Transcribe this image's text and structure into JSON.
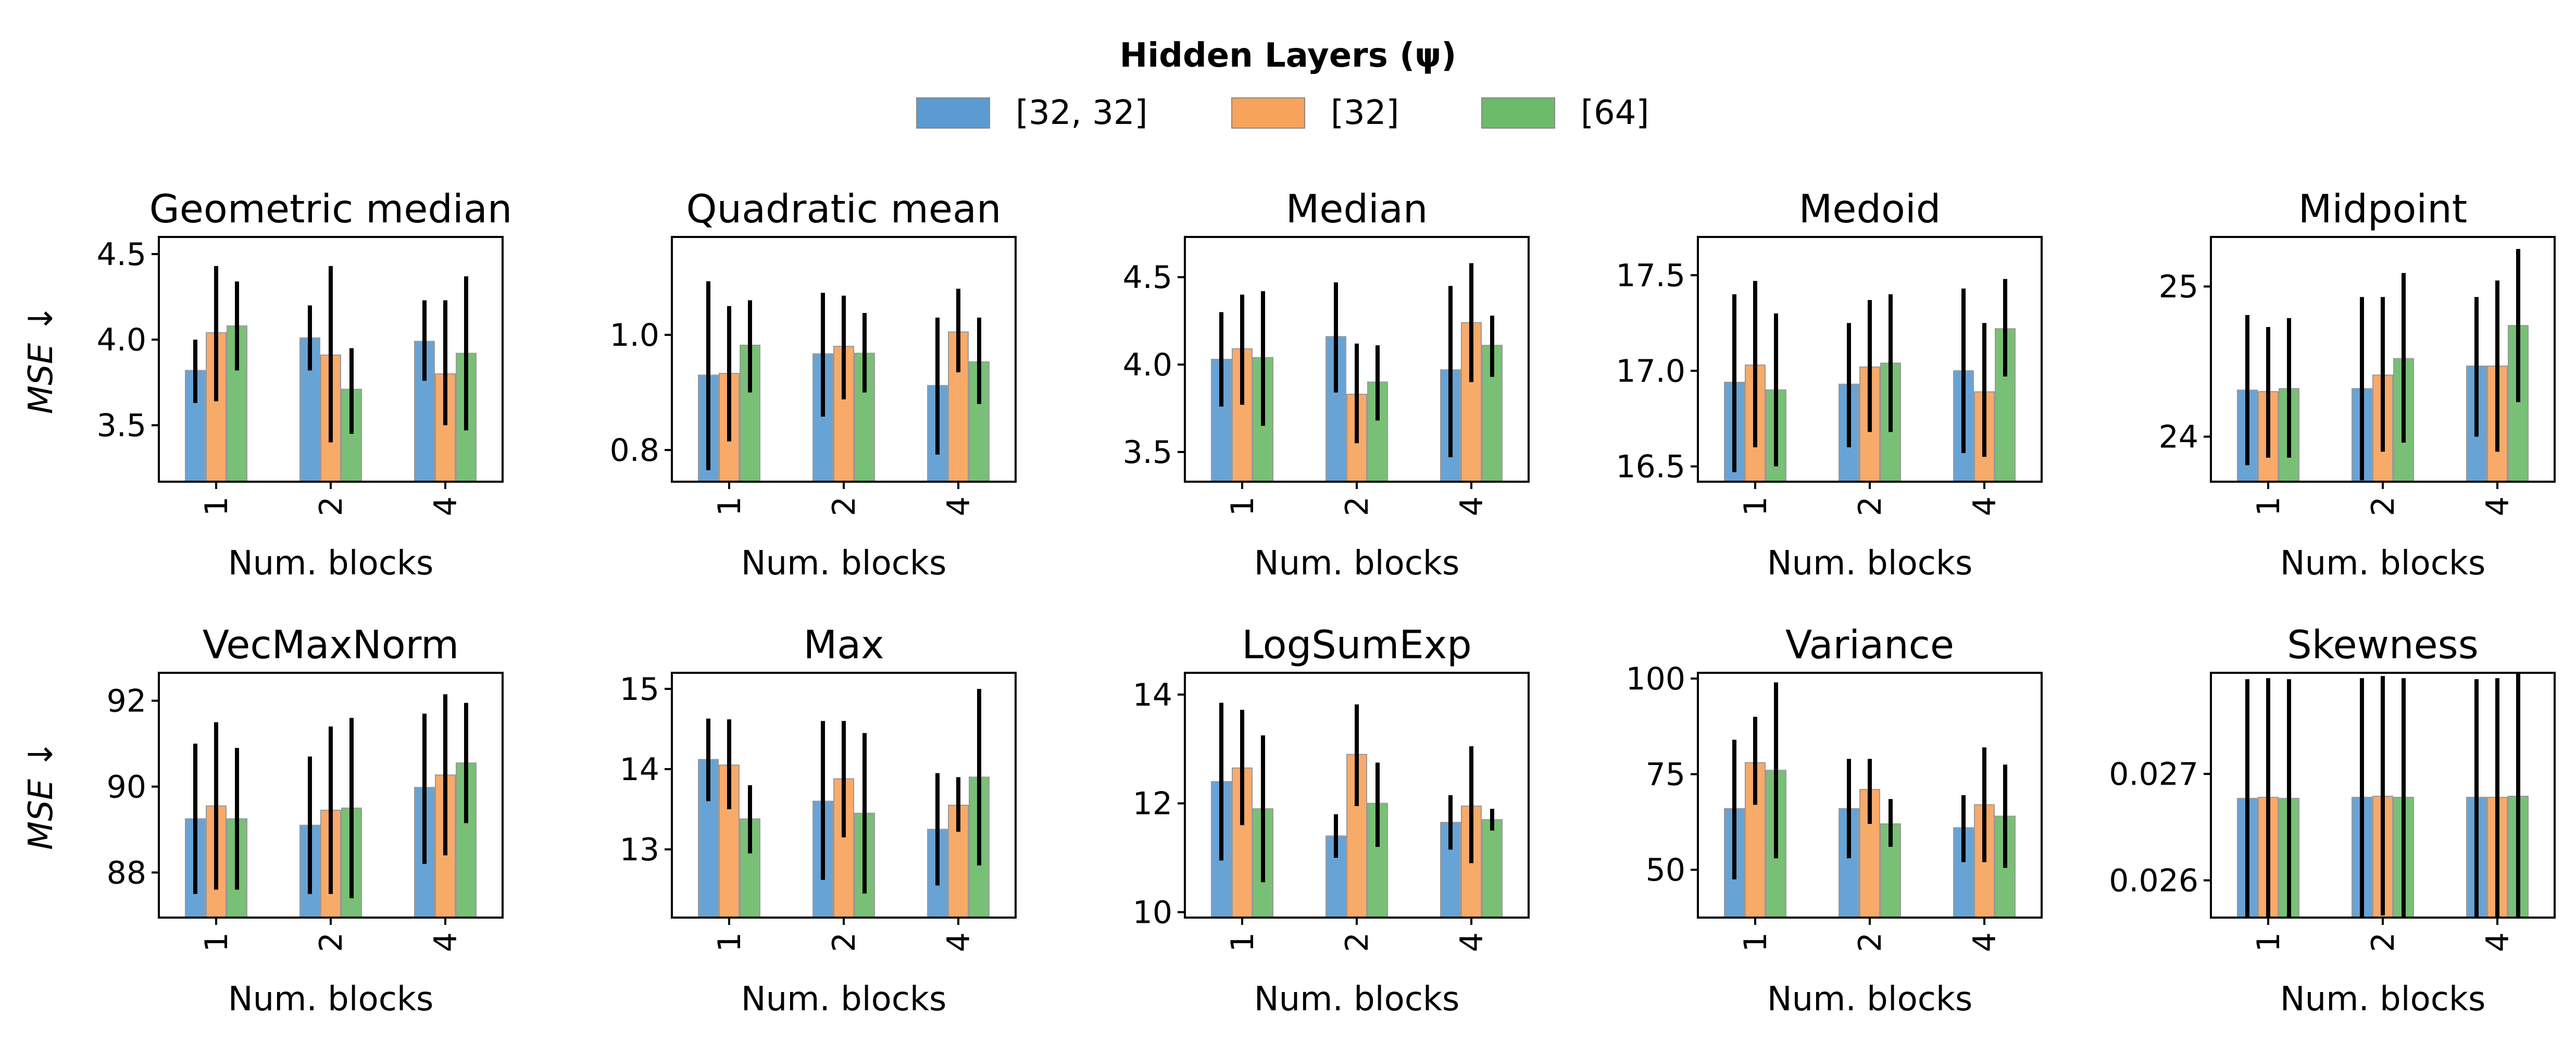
{
  "legend": {
    "title": "Hidden Layers (ψ)",
    "entries": [
      {
        "label": "[32, 32]",
        "color": "#5b9bd1"
      },
      {
        "label": "[32]",
        "color": "#f7a35c"
      },
      {
        "label": "[64]",
        "color": "#6cbb6a"
      }
    ]
  },
  "chart_data": [
    {
      "type": "bar",
      "title": "Geometric median",
      "xlabel": "Num. blocks",
      "ylabel": "MSE ↓",
      "categories": [
        "1",
        "2",
        "4"
      ],
      "ylim": [
        3.17,
        4.6
      ],
      "yticks": [
        3.5,
        4.0,
        4.5
      ],
      "ytick_labels": [
        "3.5",
        "4.0",
        "4.5"
      ],
      "series": [
        {
          "name": "[32, 32]",
          "values": [
            3.82,
            4.01,
            3.99
          ],
          "err": [
            [
              3.63,
              4.0
            ],
            [
              3.82,
              4.2
            ],
            [
              3.76,
              4.23
            ]
          ]
        },
        {
          "name": "[32]",
          "values": [
            4.04,
            3.91,
            3.8
          ],
          "err": [
            [
              3.64,
              4.43
            ],
            [
              3.4,
              4.43
            ],
            [
              3.5,
              4.23
            ]
          ]
        },
        {
          "name": "[64]",
          "values": [
            4.08,
            3.71,
            3.92
          ],
          "err": [
            [
              3.82,
              4.34
            ],
            [
              3.45,
              3.95
            ],
            [
              3.47,
              4.37
            ]
          ]
        }
      ]
    },
    {
      "type": "bar",
      "title": "Quadratic mean",
      "xlabel": "Num. blocks",
      "ylabel": "",
      "categories": [
        "1",
        "2",
        "4"
      ],
      "ylim": [
        0.745,
        1.17
      ],
      "yticks": [
        0.8,
        1.0
      ],
      "ytick_labels": [
        "0.8",
        "1.0"
      ],
      "series": [
        {
          "name": "[32, 32]",
          "values": [
            0.93,
            0.967,
            0.912
          ],
          "err": [
            [
              0.765,
              1.093
            ],
            [
              0.858,
              1.073
            ],
            [
              0.792,
              1.03
            ]
          ]
        },
        {
          "name": "[32]",
          "values": [
            0.933,
            0.98,
            1.005
          ],
          "err": [
            [
              0.815,
              1.05
            ],
            [
              0.888,
              1.068
            ],
            [
              0.935,
              1.08
            ]
          ]
        },
        {
          "name": "[64]",
          "values": [
            0.982,
            0.968,
            0.953
          ],
          "err": [
            [
              0.9,
              1.06
            ],
            [
              0.9,
              1.038
            ],
            [
              0.88,
              1.03
            ]
          ]
        }
      ]
    },
    {
      "type": "bar",
      "title": "Median",
      "xlabel": "Num. blocks",
      "ylabel": "",
      "categories": [
        "1",
        "2",
        "4"
      ],
      "ylim": [
        3.33,
        4.73
      ],
      "yticks": [
        3.5,
        4.0,
        4.5
      ],
      "ytick_labels": [
        "3.5",
        "4.0",
        "4.5"
      ],
      "series": [
        {
          "name": "[32, 32]",
          "values": [
            4.03,
            4.16,
            3.97
          ],
          "err": [
            [
              3.76,
              4.3
            ],
            [
              3.84,
              4.47
            ],
            [
              3.47,
              4.45
            ]
          ]
        },
        {
          "name": "[32]",
          "values": [
            4.09,
            3.83,
            4.24
          ],
          "err": [
            [
              3.77,
              4.4
            ],
            [
              3.55,
              4.12
            ],
            [
              3.9,
              4.58
            ]
          ]
        },
        {
          "name": "[64]",
          "values": [
            4.04,
            3.9,
            4.11
          ],
          "err": [
            [
              3.65,
              4.42
            ],
            [
              3.68,
              4.11
            ],
            [
              3.93,
              4.28
            ]
          ]
        }
      ]
    },
    {
      "type": "bar",
      "title": "Medoid",
      "xlabel": "Num. blocks",
      "ylabel": "",
      "categories": [
        "1",
        "2",
        "4"
      ],
      "ylim": [
        16.42,
        17.7
      ],
      "yticks": [
        16.5,
        17.0,
        17.5
      ],
      "ytick_labels": [
        "16.5",
        "17.0",
        "17.5"
      ],
      "series": [
        {
          "name": "[32, 32]",
          "values": [
            16.94,
            16.93,
            17.0
          ],
          "err": [
            [
              16.47,
              17.4
            ],
            [
              16.6,
              17.25
            ],
            [
              16.57,
              17.43
            ]
          ]
        },
        {
          "name": "[32]",
          "values": [
            17.03,
            17.02,
            16.89
          ],
          "err": [
            [
              16.6,
              17.47
            ],
            [
              16.68,
              17.37
            ],
            [
              16.55,
              17.25
            ]
          ]
        },
        {
          "name": "[64]",
          "values": [
            16.9,
            17.04,
            17.22
          ],
          "err": [
            [
              16.5,
              17.3
            ],
            [
              16.68,
              17.4
            ],
            [
              16.97,
              17.48
            ]
          ]
        }
      ]
    },
    {
      "type": "bar",
      "title": "Midpoint",
      "xlabel": "Num. blocks",
      "ylabel": "",
      "categories": [
        "1",
        "2",
        "4"
      ],
      "ylim": [
        23.7,
        25.33
      ],
      "yticks": [
        24.0,
        25.0
      ],
      "ytick_labels": [
        "24",
        "25"
      ],
      "series": [
        {
          "name": "[32, 32]",
          "values": [
            24.31,
            24.32,
            24.47
          ],
          "err": [
            [
              23.81,
              24.81
            ],
            [
              23.71,
              24.93
            ],
            [
              24.0,
              24.93
            ]
          ]
        },
        {
          "name": "[32]",
          "values": [
            24.3,
            24.41,
            24.47
          ],
          "err": [
            [
              23.86,
              24.73
            ],
            [
              23.9,
              24.93
            ],
            [
              23.9,
              25.04
            ]
          ]
        },
        {
          "name": "[64]",
          "values": [
            24.32,
            24.52,
            24.74
          ],
          "err": [
            [
              23.86,
              24.79
            ],
            [
              23.96,
              25.09
            ],
            [
              24.23,
              25.25
            ]
          ]
        }
      ]
    },
    {
      "type": "bar",
      "title": "VecMaxNorm",
      "xlabel": "Num. blocks",
      "ylabel": "MSE ↓",
      "categories": [
        "1",
        "2",
        "4"
      ],
      "ylim": [
        86.95,
        92.65
      ],
      "yticks": [
        88,
        90,
        92
      ],
      "ytick_labels": [
        "88",
        "90",
        "92"
      ],
      "series": [
        {
          "name": "[32, 32]",
          "values": [
            89.25,
            89.1,
            89.98
          ],
          "err": [
            [
              87.5,
              91.0
            ],
            [
              87.5,
              90.7
            ],
            [
              88.2,
              91.7
            ]
          ]
        },
        {
          "name": "[32]",
          "values": [
            89.55,
            89.45,
            90.27
          ],
          "err": [
            [
              87.6,
              91.5
            ],
            [
              87.5,
              91.4
            ],
            [
              88.4,
              92.15
            ]
          ]
        },
        {
          "name": "[64]",
          "values": [
            89.25,
            89.5,
            90.55
          ],
          "err": [
            [
              87.6,
              90.9
            ],
            [
              87.4,
              91.6
            ],
            [
              89.15,
              91.95
            ]
          ]
        }
      ]
    },
    {
      "type": "bar",
      "title": "Max",
      "xlabel": "Num. blocks",
      "ylabel": "",
      "categories": [
        "1",
        "2",
        "4"
      ],
      "ylim": [
        12.15,
        15.2
      ],
      "yticks": [
        13,
        14,
        15
      ],
      "ytick_labels": [
        "13",
        "14",
        "15"
      ],
      "series": [
        {
          "name": "[32, 32]",
          "values": [
            14.12,
            13.6,
            13.25
          ],
          "err": [
            [
              13.6,
              14.63
            ],
            [
              12.62,
              14.6
            ],
            [
              12.55,
              13.95
            ]
          ]
        },
        {
          "name": "[32]",
          "values": [
            14.05,
            13.88,
            13.55
          ],
          "err": [
            [
              13.5,
              14.62
            ],
            [
              13.15,
              14.6
            ],
            [
              13.22,
              13.9
            ]
          ]
        },
        {
          "name": "[64]",
          "values": [
            13.38,
            13.45,
            13.9
          ],
          "err": [
            [
              12.95,
              13.8
            ],
            [
              12.45,
              14.45
            ],
            [
              12.8,
              15.0
            ]
          ]
        }
      ]
    },
    {
      "type": "bar",
      "title": "LogSumExp",
      "xlabel": "Num. blocks",
      "ylabel": "",
      "categories": [
        "1",
        "2",
        "4"
      ],
      "ylim": [
        9.9,
        14.4
      ],
      "yticks": [
        10,
        12,
        14
      ],
      "ytick_labels": [
        "10",
        "12",
        "14"
      ],
      "series": [
        {
          "name": "[32, 32]",
          "values": [
            12.4,
            11.4,
            11.65
          ],
          "err": [
            [
              10.95,
              13.85
            ],
            [
              11.0,
              11.8
            ],
            [
              11.15,
              12.15
            ]
          ]
        },
        {
          "name": "[32]",
          "values": [
            12.65,
            12.9,
            11.95
          ],
          "err": [
            [
              11.6,
              13.72
            ],
            [
              11.95,
              13.82
            ],
            [
              10.9,
              13.05
            ]
          ]
        },
        {
          "name": "[64]",
          "values": [
            11.9,
            12.0,
            11.7
          ],
          "err": [
            [
              10.55,
              13.25
            ],
            [
              11.2,
              12.75
            ],
            [
              11.5,
              11.9
            ]
          ]
        }
      ]
    },
    {
      "type": "bar",
      "title": "Variance",
      "xlabel": "Num. blocks",
      "ylabel": "",
      "categories": [
        "1",
        "2",
        "4"
      ],
      "ylim": [
        37.5,
        101.5
      ],
      "yticks": [
        50,
        75,
        100
      ],
      "ytick_labels": [
        "50",
        "75",
        "100"
      ],
      "series": [
        {
          "name": "[32, 32]",
          "values": [
            66.0,
            66.0,
            61.0
          ],
          "err": [
            [
              47.5,
              84.0
            ],
            [
              53.0,
              79.0
            ],
            [
              52.0,
              69.5
            ]
          ]
        },
        {
          "name": "[32]",
          "values": [
            78.0,
            71.0,
            67.0
          ],
          "err": [
            [
              67.0,
              90.0
            ],
            [
              62.0,
              79.0
            ],
            [
              52.0,
              82.0
            ]
          ]
        },
        {
          "name": "[64]",
          "values": [
            76.0,
            62.0,
            64.0
          ],
          "err": [
            [
              53.0,
              99.0
            ],
            [
              56.0,
              68.5
            ],
            [
              50.5,
              77.5
            ]
          ]
        }
      ]
    },
    {
      "type": "bar",
      "title": "Skewness",
      "xlabel": "Num. blocks",
      "ylabel": "",
      "categories": [
        "1",
        "2",
        "4"
      ],
      "ylim": [
        0.02565,
        0.02795
      ],
      "yticks": [
        0.026,
        0.027
      ],
      "ytick_labels": [
        "0.026",
        "0.027"
      ],
      "series": [
        {
          "name": "[32, 32]",
          "values": [
            0.02677,
            0.02678,
            0.02678
          ],
          "err": [
            [
              0.02565,
              0.02789
            ],
            [
              0.02565,
              0.0279
            ],
            [
              0.02565,
              0.02789
            ]
          ]
        },
        {
          "name": "[32]",
          "values": [
            0.02678,
            0.02679,
            0.02678
          ],
          "err": [
            [
              0.02566,
              0.0279
            ],
            [
              0.02567,
              0.02792
            ],
            [
              0.02566,
              0.0279
            ]
          ]
        },
        {
          "name": "[64]",
          "values": [
            0.02677,
            0.02678,
            0.02679
          ],
          "err": [
            [
              0.02566,
              0.02789
            ],
            [
              0.02566,
              0.0279
            ],
            [
              0.02566,
              0.02795
            ]
          ]
        }
      ]
    }
  ]
}
